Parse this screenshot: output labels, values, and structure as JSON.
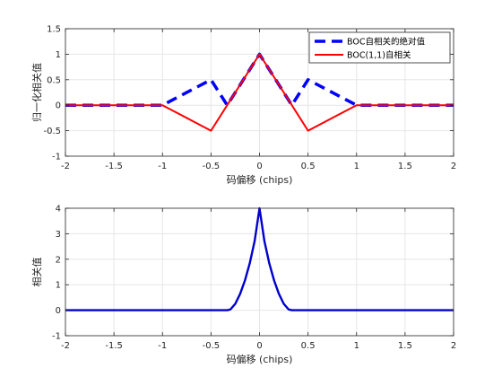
{
  "chart_data": [
    {
      "type": "line",
      "xlabel": "码偏移 (chips)",
      "ylabel": "归一化相关值",
      "xlim": [
        -2,
        2
      ],
      "ylim": [
        -1,
        1.5
      ],
      "xticks": [
        -2,
        -1.5,
        -1,
        -0.5,
        0,
        0.5,
        1,
        1.5,
        2
      ],
      "yticks": [
        -1,
        -0.5,
        0,
        0.5,
        1,
        1.5
      ],
      "xtick_labels": [
        "-2",
        "-1.5",
        "-1",
        "-0.5",
        "0",
        "0.5",
        "1",
        "1.5",
        "2"
      ],
      "ytick_labels": [
        "-1",
        "-0.5",
        "0",
        "0.5",
        "1",
        "1.5"
      ],
      "grid": true,
      "legend_position": "top-right",
      "series": [
        {
          "name": "BOC自相关的绝对值",
          "color": "#0000ff",
          "style": "dashed",
          "x": [
            -2,
            -1,
            -0.5,
            -0.333,
            0,
            0.333,
            0.5,
            1,
            2
          ],
          "y": [
            0,
            0,
            0.5,
            0,
            1,
            0,
            0.5,
            0,
            0
          ]
        },
        {
          "name": "BOC(1,1)自相关",
          "color": "#ff0000",
          "style": "solid",
          "x": [
            -2,
            -1,
            -0.5,
            0,
            0.5,
            1,
            2
          ],
          "y": [
            0,
            0,
            -0.5,
            1,
            -0.5,
            0,
            0
          ]
        }
      ]
    },
    {
      "type": "line",
      "xlabel": "码偏移 (chips)",
      "ylabel": "相关值",
      "xlim": [
        -2,
        2
      ],
      "ylim": [
        -1,
        4
      ],
      "xticks": [
        -2,
        -1.5,
        -1,
        -0.5,
        0,
        0.5,
        1,
        1.5,
        2
      ],
      "yticks": [
        -1,
        0,
        1,
        2,
        3,
        4
      ],
      "xtick_labels": [
        "-2",
        "-1.5",
        "-1",
        "-0.5",
        "0",
        "0.5",
        "1",
        "1.5",
        "2"
      ],
      "ytick_labels": [
        "-1",
        "0",
        "1",
        "2",
        "3",
        "4"
      ],
      "grid": true,
      "series": [
        {
          "color": "#0000cc",
          "style": "solid",
          "x": [
            -2,
            -0.333,
            -0.3,
            -0.25,
            -0.2,
            -0.15,
            -0.1,
            -0.05,
            0,
            0.05,
            0.1,
            0.15,
            0.2,
            0.25,
            0.3,
            0.333,
            2
          ],
          "y": [
            0,
            0,
            0.03,
            0.25,
            0.64,
            1.17,
            1.85,
            2.72,
            4,
            2.72,
            1.85,
            1.17,
            0.64,
            0.25,
            0.03,
            0,
            0
          ]
        }
      ]
    }
  ]
}
